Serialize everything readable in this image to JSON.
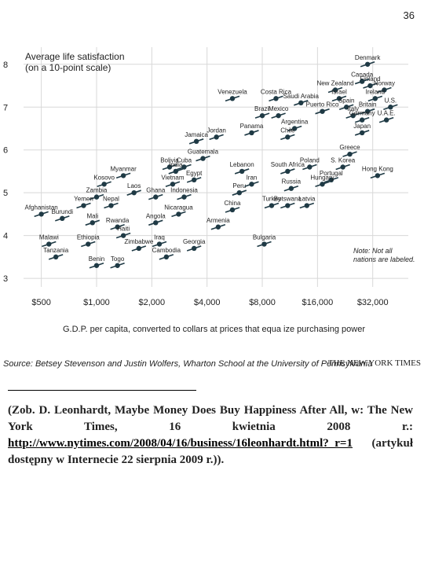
{
  "page_number": "36",
  "chart_data": {
    "type": "scatter",
    "ylabel_lines": [
      "Average life satisfaction",
      "(on a 10-point scale)"
    ],
    "xlabel": "G.D.P. per capita, converted to collars at prices that equa ize purchasing power",
    "x_scale": "log",
    "x_ticks": [
      {
        "value": 500,
        "label": "$500"
      },
      {
        "value": 1000,
        "label": "$1,000"
      },
      {
        "value": 2000,
        "label": "$2,000"
      },
      {
        "value": 4000,
        "label": "$4,000"
      },
      {
        "value": 8000,
        "label": "$8,000"
      },
      {
        "value": 16000,
        "label": "$16,000"
      },
      {
        "value": 32000,
        "label": "$32,000"
      }
    ],
    "y_ticks": [
      {
        "value": 3,
        "label": "3"
      },
      {
        "value": 4,
        "label": "4"
      },
      {
        "value": 5,
        "label": "5"
      },
      {
        "value": 6,
        "label": "6"
      },
      {
        "value": 7,
        "label": "7"
      },
      {
        "value": 8,
        "label": "8"
      }
    ],
    "xlim": [
      400,
      50000
    ],
    "ylim": [
      2.8,
      8.4
    ],
    "grid": true,
    "note": [
      "Note: Not all",
      "nations are labeled."
    ],
    "source": "Source: Betsey Stevenson and Justin Wolfers, Wharton School at the University of Pennsylvania",
    "credit": "THE NEW YORK TIMES",
    "labeled_points": [
      {
        "label": "Denmark",
        "x": 30000,
        "y": 8.0
      },
      {
        "label": "Finland",
        "x": 31000,
        "y": 7.5
      },
      {
        "label": "Canada",
        "x": 28000,
        "y": 7.6
      },
      {
        "label": "Norway",
        "x": 37000,
        "y": 7.4
      },
      {
        "label": "New Zealand",
        "x": 20000,
        "y": 7.4
      },
      {
        "label": "Ireland",
        "x": 33000,
        "y": 7.2
      },
      {
        "label": "Israel",
        "x": 21000,
        "y": 7.2
      },
      {
        "label": "Spain",
        "x": 23000,
        "y": 7.0
      },
      {
        "label": "Italy",
        "x": 25000,
        "y": 6.8
      },
      {
        "label": "U.S.",
        "x": 40000,
        "y": 7.0
      },
      {
        "label": "Britain",
        "x": 30000,
        "y": 6.9
      },
      {
        "label": "Germany",
        "x": 28000,
        "y": 6.7
      },
      {
        "label": "Japan",
        "x": 28000,
        "y": 6.4
      },
      {
        "label": "U.A.E.",
        "x": 38000,
        "y": 6.7
      },
      {
        "label": "Venezuela",
        "x": 5500,
        "y": 7.2
      },
      {
        "label": "Costa Rica",
        "x": 9500,
        "y": 7.2
      },
      {
        "label": "Saudi Arabia",
        "x": 13000,
        "y": 7.1
      },
      {
        "label": "Puerto Rico",
        "x": 17000,
        "y": 6.9
      },
      {
        "label": "Mexico",
        "x": 9800,
        "y": 6.8
      },
      {
        "label": "Brazil",
        "x": 8000,
        "y": 6.8
      },
      {
        "label": "Argentina",
        "x": 12000,
        "y": 6.5
      },
      {
        "label": "Chile",
        "x": 11000,
        "y": 6.3
      },
      {
        "label": "Panama",
        "x": 7000,
        "y": 6.4
      },
      {
        "label": "Jordan",
        "x": 4500,
        "y": 6.3
      },
      {
        "label": "Jamaica",
        "x": 3500,
        "y": 6.2
      },
      {
        "label": "Guatemala",
        "x": 3800,
        "y": 5.8
      },
      {
        "label": "Greece",
        "x": 24000,
        "y": 5.9
      },
      {
        "label": "S. Korea",
        "x": 22000,
        "y": 5.6
      },
      {
        "label": "Poland",
        "x": 14500,
        "y": 5.6
      },
      {
        "label": "Portugal",
        "x": 19000,
        "y": 5.3
      },
      {
        "label": "Hungary",
        "x": 17000,
        "y": 5.2
      },
      {
        "label": "Hong Kong",
        "x": 34000,
        "y": 5.4
      },
      {
        "label": "South Africa",
        "x": 11000,
        "y": 5.5
      },
      {
        "label": "Russia",
        "x": 11500,
        "y": 5.1
      },
      {
        "label": "Latvia",
        "x": 14000,
        "y": 4.7
      },
      {
        "label": "Botswana",
        "x": 11000,
        "y": 4.7
      },
      {
        "label": "Turkey",
        "x": 9000,
        "y": 4.7
      },
      {
        "label": "Peru",
        "x": 6000,
        "y": 5.0
      },
      {
        "label": "Iran",
        "x": 7000,
        "y": 5.2
      },
      {
        "label": "Lebanon",
        "x": 6200,
        "y": 5.5
      },
      {
        "label": "China",
        "x": 5500,
        "y": 4.6
      },
      {
        "label": "Armenia",
        "x": 4600,
        "y": 4.2
      },
      {
        "label": "Bulgaria",
        "x": 8200,
        "y": 3.8
      },
      {
        "label": "Bolivia",
        "x": 2500,
        "y": 5.6
      },
      {
        "label": "India",
        "x": 2700,
        "y": 5.5
      },
      {
        "label": "Cuba",
        "x": 3000,
        "y": 5.6
      },
      {
        "label": "Egypt",
        "x": 3400,
        "y": 5.3
      },
      {
        "label": "Vietnam",
        "x": 2600,
        "y": 5.2
      },
      {
        "label": "Indonesia",
        "x": 3000,
        "y": 4.9
      },
      {
        "label": "Ghana",
        "x": 2100,
        "y": 4.9
      },
      {
        "label": "Laos",
        "x": 1600,
        "y": 5.0
      },
      {
        "label": "Myanmar",
        "x": 1400,
        "y": 5.4
      },
      {
        "label": "Kosovo",
        "x": 1100,
        "y": 5.2
      },
      {
        "label": "Zambia",
        "x": 1000,
        "y": 4.9
      },
      {
        "label": "Yemen",
        "x": 850,
        "y": 4.7
      },
      {
        "label": "Nepal",
        "x": 1200,
        "y": 4.7
      },
      {
        "label": "Afghanistan",
        "x": 500,
        "y": 4.5
      },
      {
        "label": "Burundi",
        "x": 650,
        "y": 4.4
      },
      {
        "label": "Mali",
        "x": 950,
        "y": 4.3
      },
      {
        "label": "Rwanda",
        "x": 1300,
        "y": 4.2
      },
      {
        "label": "Angola",
        "x": 2100,
        "y": 4.3
      },
      {
        "label": "Nicaragua",
        "x": 2800,
        "y": 4.5
      },
      {
        "label": "Haiti",
        "x": 1400,
        "y": 4.0
      },
      {
        "label": "Malawi",
        "x": 550,
        "y": 3.8
      },
      {
        "label": "Ethiopia",
        "x": 900,
        "y": 3.8
      },
      {
        "label": "Zimbabwe",
        "x": 1700,
        "y": 3.7
      },
      {
        "label": "Iraq",
        "x": 2200,
        "y": 3.8
      },
      {
        "label": "Georgia",
        "x": 3400,
        "y": 3.7
      },
      {
        "label": "Tanzania",
        "x": 600,
        "y": 3.5
      },
      {
        "label": "Cambodia",
        "x": 2400,
        "y": 3.5
      },
      {
        "label": "Benin",
        "x": 1000,
        "y": 3.3
      },
      {
        "label": "Togo",
        "x": 1300,
        "y": 3.3
      }
    ]
  },
  "citation": {
    "before": "(Zob. D. Leonhardt, Maybe Money Does Buy Happiness After All, w: The New York Times, 16 kwietnia 2008 r.: ",
    "link": "http://www.nytimes.com/2008/04/16/business/16leonhardt.html?_r=1",
    "after": " (artykuł dostępny w Internecie 22 sierpnia 2009 r.))."
  }
}
